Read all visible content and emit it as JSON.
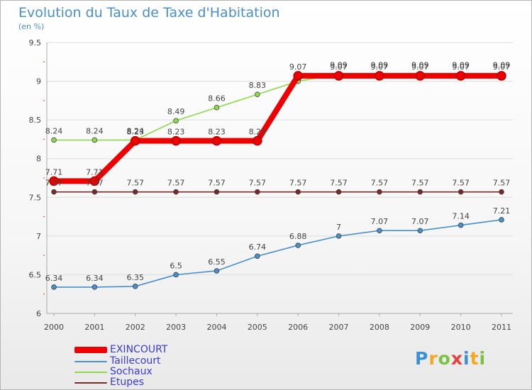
{
  "header": {
    "title": "Evolution du Taux de Taxe d'Habitation",
    "unit": "(en %)"
  },
  "chart_data": {
    "type": "line",
    "title": "Evolution du Taux de Taxe d'Habitation",
    "ylabel": "(en %)",
    "xlabel": "",
    "ylim": [
      6,
      9.5
    ],
    "yticks": [
      "6",
      "6.5",
      "7",
      "7.5",
      "8",
      "8.5",
      "9",
      "9.5"
    ],
    "categories": [
      "2000",
      "2001",
      "2002",
      "2003",
      "2004",
      "2005",
      "2006",
      "2007",
      "2008",
      "2009",
      "2010",
      "2011"
    ],
    "series": [
      {
        "name": "Etupes",
        "color": "#7a2a2a",
        "values": [
          7.57,
          7.57,
          7.57,
          7.57,
          7.57,
          7.57,
          7.57,
          7.57,
          7.57,
          7.57,
          7.57,
          7.57
        ],
        "labels": [
          "7.57",
          "7.57",
          "7.57",
          "7.57",
          "7.57",
          "7.57",
          "7.57",
          "7.57",
          "7.57",
          "7.57",
          "7.57",
          "7.57"
        ]
      },
      {
        "name": "Taillecourt",
        "color": "#4a8fc8",
        "values": [
          6.34,
          6.34,
          6.35,
          6.5,
          6.55,
          6.74,
          6.88,
          7,
          7.07,
          7.07,
          7.14,
          7.21
        ],
        "labels": [
          "6.34",
          "6.34",
          "6.35",
          "6.5",
          "6.55",
          "6.74",
          "6.88",
          "7",
          "7.07",
          "7.07",
          "7.14",
          "7.21"
        ]
      },
      {
        "name": "Sochaux",
        "color": "#8fd850",
        "values": [
          8.24,
          8.24,
          8.24,
          8.49,
          8.66,
          8.83,
          9,
          9.09,
          9.09,
          9.09,
          9.09,
          9.09
        ],
        "labels": [
          "8.24",
          "8.24",
          "8.24",
          "8.49",
          "8.66",
          "8.83",
          "",
          "9.09",
          "9.09",
          "9.09",
          "9.09",
          "9.09"
        ]
      },
      {
        "name": "EXINCOURT",
        "color": "#ee0000",
        "values": [
          7.71,
          7.71,
          8.23,
          8.23,
          8.23,
          8.23,
          9.07,
          9.07,
          9.07,
          9.07,
          9.07,
          9.07
        ],
        "labels": [
          "7.71",
          "7.71",
          "8.23",
          "8.23",
          "8.23",
          "8.23",
          "9.07",
          "9.07",
          "9.07",
          "9.07",
          "9.07",
          "9.07"
        ]
      }
    ]
  },
  "legend": {
    "items": [
      {
        "label": "EXINCOURT",
        "color": "#ee0000"
      },
      {
        "label": "Taillecourt",
        "color": "#4a8fc8"
      },
      {
        "label": "Sochaux",
        "color": "#8fd850"
      },
      {
        "label": "Etupes",
        "color": "#7a2a2a"
      }
    ]
  },
  "logo": {
    "letters": [
      "P",
      "r",
      "o",
      "x",
      "i",
      "t",
      "i"
    ],
    "colors": [
      "#3a8fd8",
      "#f5a623",
      "#7cc242",
      "#e8403a",
      "#3a8fd8",
      "#f5a623",
      "#7cc242"
    ]
  }
}
